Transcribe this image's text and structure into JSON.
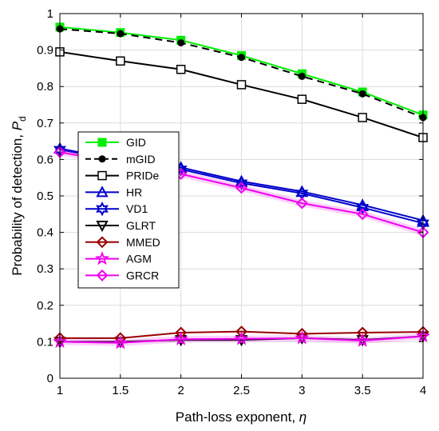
{
  "chart_data": {
    "type": "line",
    "xlabel": "Path-loss exponent, ",
    "xlabel_symbol": "η",
    "ylabel": "Probability of detection, ",
    "ylabel_symbol": "P",
    "ylabel_sub": "d",
    "xlim": [
      1,
      4
    ],
    "ylim": [
      0,
      1
    ],
    "grid": true,
    "legend_position": "center-left",
    "x": [
      1,
      1.5,
      2,
      2.5,
      3,
      3.5,
      4
    ],
    "x_tick_labels": [
      "1",
      "1.5",
      "2",
      "2.5",
      "3",
      "3.5",
      "4"
    ],
    "y_ticks": [
      0,
      0.1,
      0.2,
      0.3,
      0.4,
      0.5,
      0.6,
      0.7,
      0.8,
      0.9,
      1
    ],
    "y_tick_labels": [
      "0",
      "0.1",
      "0.2",
      "0.3",
      "0.4",
      "0.5",
      "0.6",
      "0.7",
      "0.8",
      "0.9",
      "1"
    ],
    "series": [
      {
        "name": "GID",
        "color": "#00ee00",
        "dash": "solid",
        "marker": "square-filled",
        "values": [
          0.963,
          0.948,
          0.927,
          0.885,
          0.835,
          0.785,
          0.722
        ]
      },
      {
        "name": "mGID",
        "color": "#000000",
        "dash": "dashed",
        "marker": "circle-filled",
        "values": [
          0.958,
          0.945,
          0.92,
          0.88,
          0.828,
          0.78,
          0.715
        ]
      },
      {
        "name": "PRIDe",
        "color": "#000000",
        "dash": "solid",
        "marker": "square-open",
        "values": [
          0.895,
          0.87,
          0.847,
          0.805,
          0.765,
          0.715,
          0.66
        ]
      },
      {
        "name": "HR",
        "color": "#0000cc",
        "dash": "solid",
        "marker": "triangle-up",
        "values": [
          0.63,
          0.598,
          0.578,
          0.54,
          0.512,
          0.475,
          0.433
        ]
      },
      {
        "name": "VD1",
        "color": "#0000cc",
        "dash": "solid",
        "marker": "hexagram",
        "values": [
          0.627,
          0.595,
          0.573,
          0.535,
          0.507,
          0.468,
          0.425
        ]
      },
      {
        "name": "GLRT",
        "color": "#000000",
        "dash": "solid",
        "marker": "triangle-down",
        "values": [
          0.1,
          0.1,
          0.105,
          0.105,
          0.11,
          0.105,
          0.115
        ]
      },
      {
        "name": "MMED",
        "color": "#990000",
        "dash": "solid",
        "marker": "diamond",
        "values": [
          0.11,
          0.11,
          0.125,
          0.128,
          0.122,
          0.125,
          0.127
        ]
      },
      {
        "name": "AGM",
        "color": "#ee00ee",
        "dash": "solid",
        "marker": "pentagram",
        "values": [
          0.1,
          0.097,
          0.107,
          0.108,
          0.11,
          0.103,
          0.115
        ]
      },
      {
        "name": "GRCR",
        "color": "#ee00ee",
        "dash": "solid",
        "marker": "diamond-open",
        "values": [
          0.62,
          0.59,
          0.56,
          0.522,
          0.48,
          0.45,
          0.4
        ]
      }
    ]
  }
}
